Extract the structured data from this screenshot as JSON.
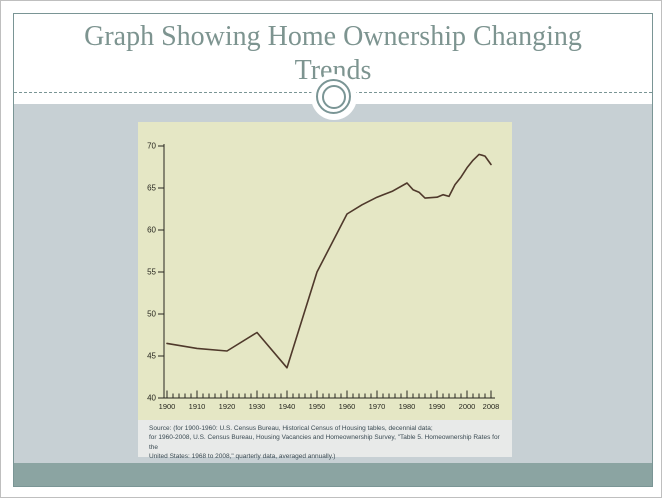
{
  "slide": {
    "title": "Graph Showing Home Ownership Changing Trends"
  },
  "colors": {
    "slide_border": "#7a9595",
    "title_text": "#7d9490",
    "body_bg": "#c7d0d4",
    "footer_bg": "#8ba4a2",
    "chart_bg": "#e5e7c5",
    "source_bg": "#e8eae9",
    "source_text": "#3a4a52",
    "axis": "#26261f",
    "line": "#4f392b"
  },
  "chart": {
    "source_lines": [
      "Source: (for 1900-1960: U.S. Census Bureau, Historical Census of Housing tables, decennial data;",
      "for 1960-2008, U.S. Census Bureau, Housing Vacancies and Homeownership Survey,  \"Table 5. Homeownership Rates for the",
      "United States:  1968 to 2008,\" quarterly data, averaged annually.)"
    ]
  },
  "chart_data": {
    "type": "line",
    "title": "",
    "xlabel": "",
    "ylabel": "",
    "x": [
      1900,
      1910,
      1920,
      1930,
      1940,
      1950,
      1960,
      1965,
      1970,
      1975,
      1980,
      1982,
      1984,
      1986,
      1990,
      1992,
      1994,
      1996,
      1998,
      2000,
      2002,
      2004,
      2005,
      2006,
      2008
    ],
    "values": [
      46.5,
      45.9,
      45.6,
      47.8,
      43.6,
      55.0,
      61.9,
      63.0,
      63.9,
      64.6,
      65.6,
      64.8,
      64.5,
      63.8,
      63.9,
      64.2,
      64.0,
      65.4,
      66.3,
      67.4,
      68.3,
      69.0,
      68.9,
      68.8,
      67.8
    ],
    "ylim": [
      40,
      70
    ],
    "xlim": [
      1900,
      2008
    ],
    "y_ticks": [
      70,
      65,
      60,
      55,
      50,
      45,
      40
    ],
    "x_ticks": [
      1900,
      1910,
      1920,
      1930,
      1940,
      1950,
      1960,
      1970,
      1980,
      1990,
      2000,
      2008
    ],
    "x_minor_tick_step": 2,
    "grid": false,
    "legend": false,
    "line_color": "#4f392b"
  }
}
